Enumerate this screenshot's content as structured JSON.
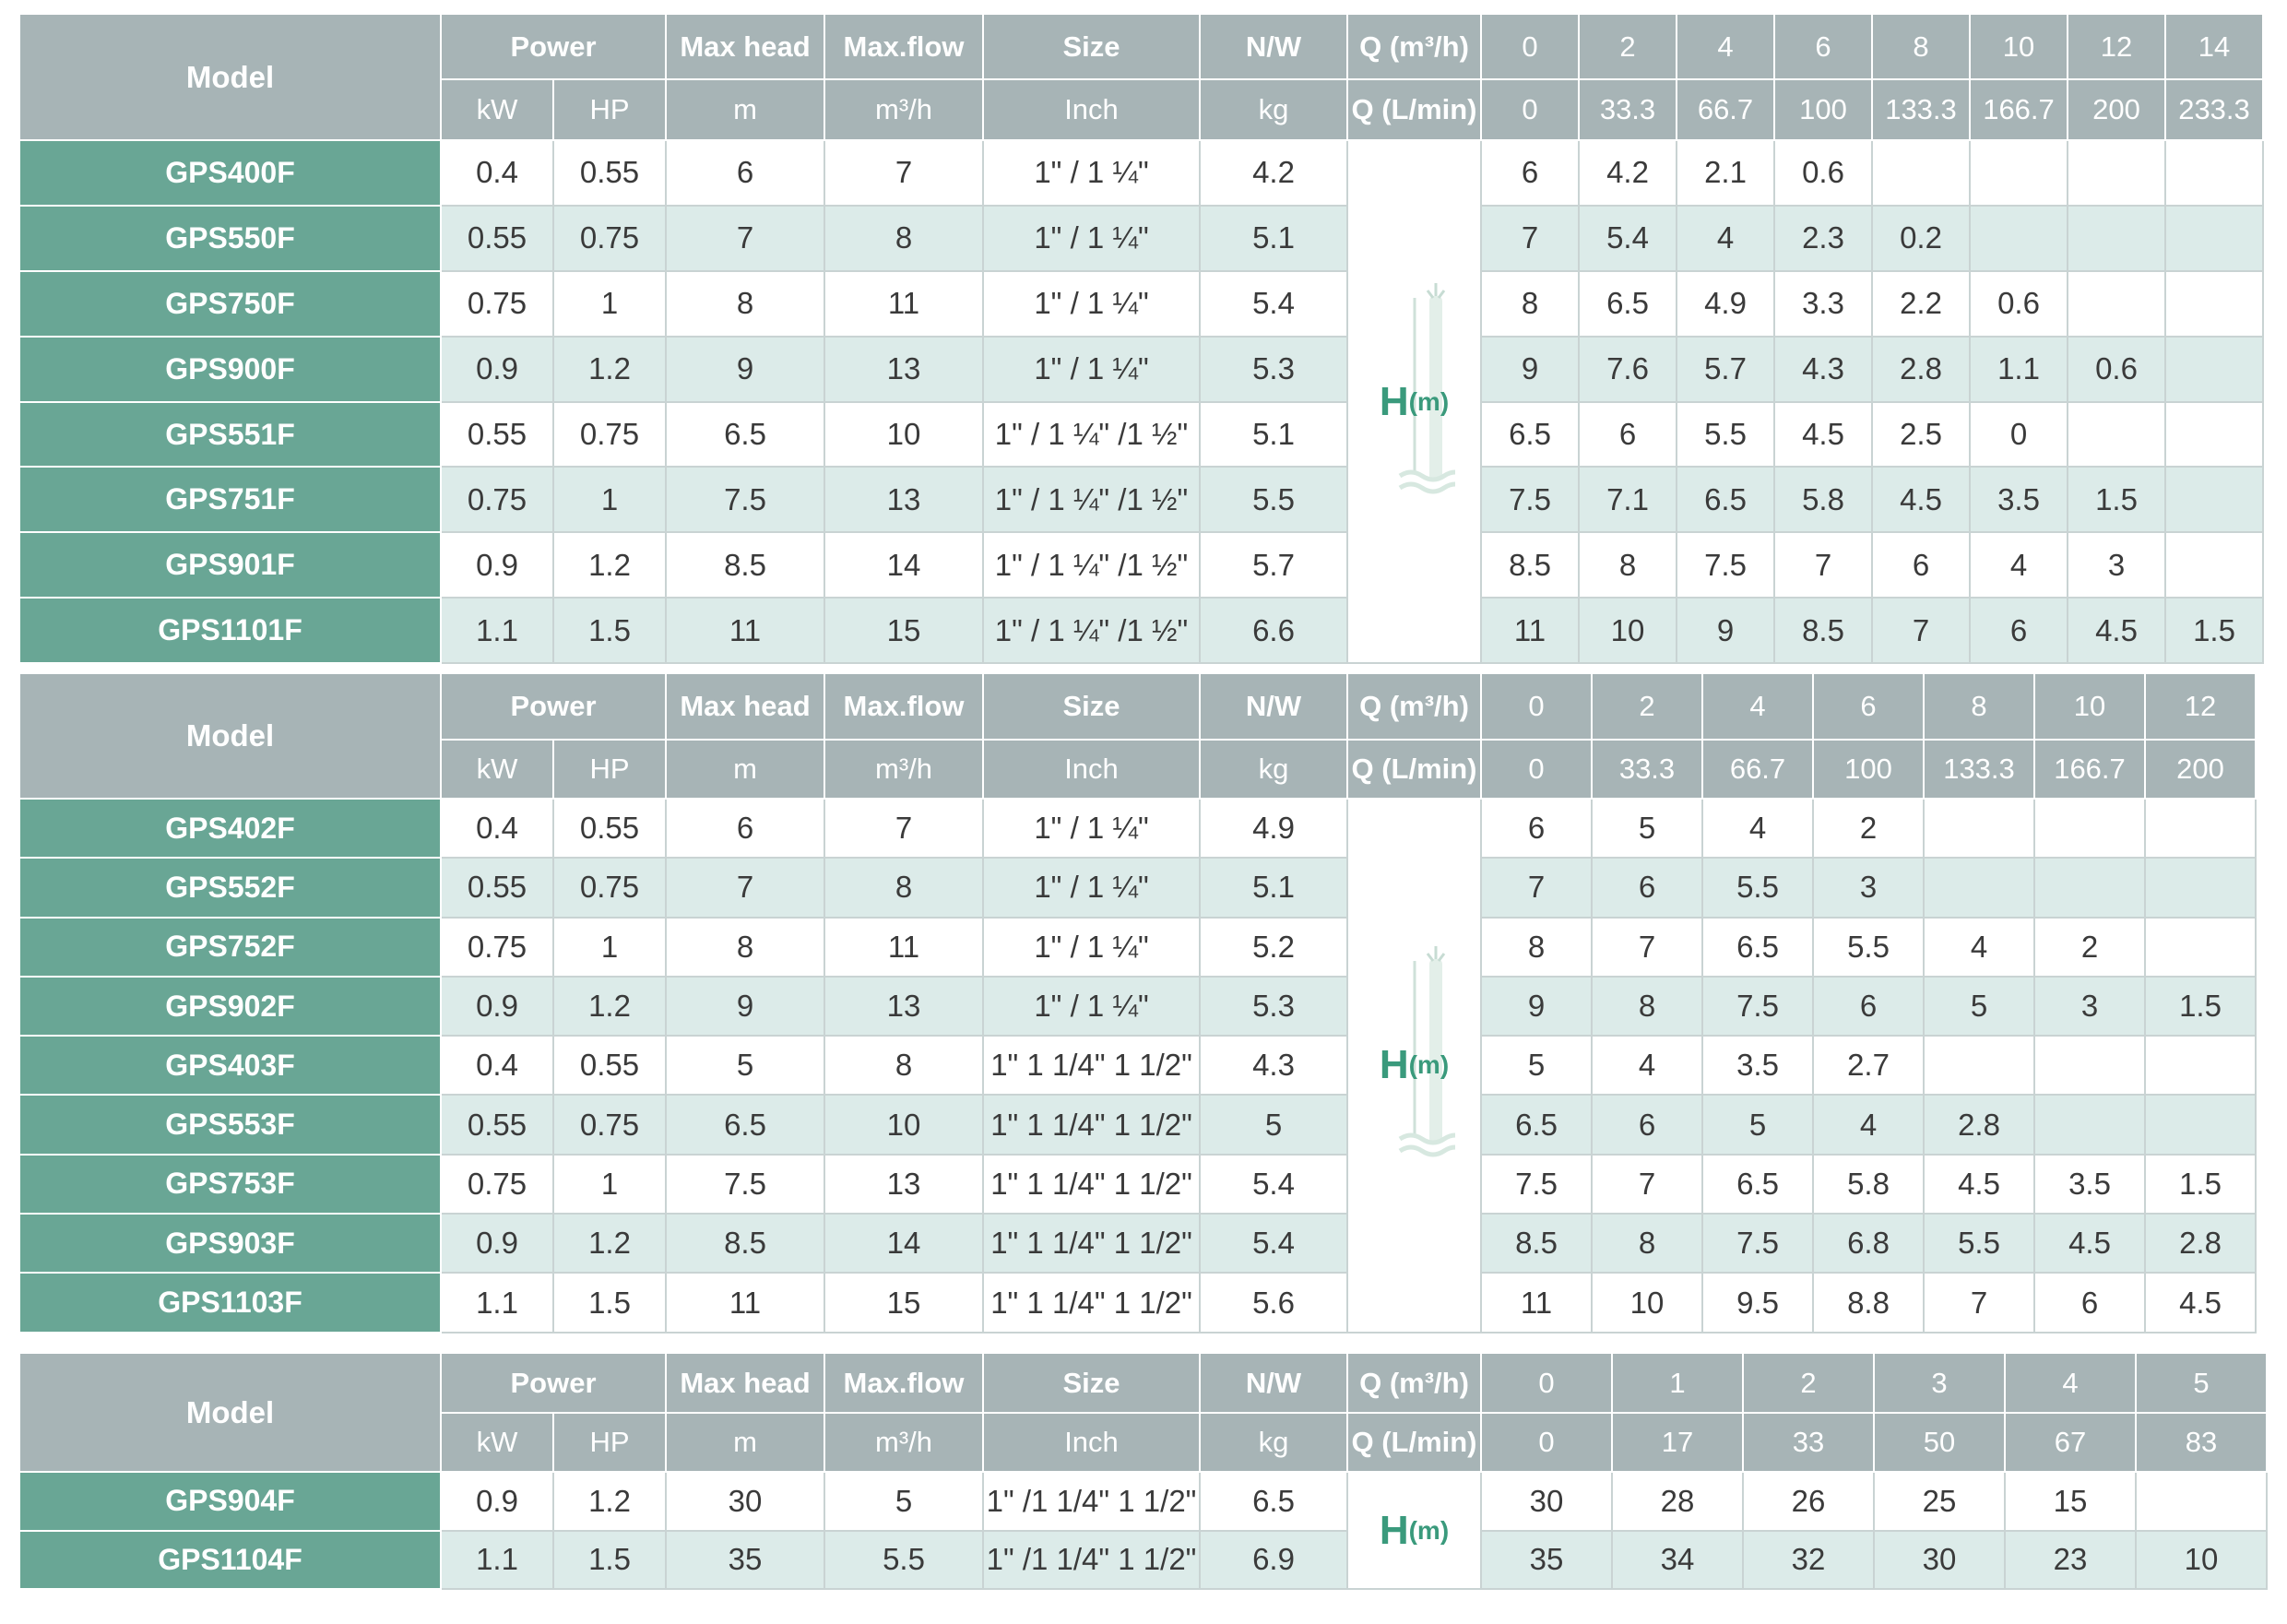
{
  "headers": {
    "model": "Model",
    "power": "Power",
    "max_head": "Max head",
    "max_flow": "Max.flow",
    "size": "Size",
    "nw": "N/W",
    "q_m3h": "Q (m³/h)",
    "kw": "kW",
    "hp": "HP",
    "m": "m",
    "m3h": "m³/h",
    "inch": "Inch",
    "kg": "kg",
    "q_lmin": "Q (L/min)"
  },
  "head_label": {
    "letter": "H",
    "unit": "(m)"
  },
  "tables": [
    {
      "q_m3h": [
        "0",
        "2",
        "4",
        "6",
        "8",
        "10",
        "12",
        "14"
      ],
      "q_lmin": [
        "0",
        "33.3",
        "66.7",
        "100",
        "133.3",
        "166.7",
        "200",
        "233.3"
      ],
      "rows": [
        {
          "model": "GPS400F",
          "kw": "0.4",
          "hp": "0.55",
          "head": "6",
          "flow": "7",
          "size": "1\" / 1 ¼\"",
          "nw": "4.2",
          "h": [
            "6",
            "4.2",
            "2.1",
            "0.6",
            "",
            "",
            "",
            ""
          ]
        },
        {
          "model": "GPS550F",
          "kw": "0.55",
          "hp": "0.75",
          "head": "7",
          "flow": "8",
          "size": "1\" / 1 ¼\"",
          "nw": "5.1",
          "h": [
            "7",
            "5.4",
            "4",
            "2.3",
            "0.2",
            "",
            "",
            ""
          ]
        },
        {
          "model": "GPS750F",
          "kw": "0.75",
          "hp": "1",
          "head": "8",
          "flow": "11",
          "size": "1\" / 1 ¼\"",
          "nw": "5.4",
          "h": [
            "8",
            "6.5",
            "4.9",
            "3.3",
            "2.2",
            "0.6",
            "",
            ""
          ]
        },
        {
          "model": "GPS900F",
          "kw": "0.9",
          "hp": "1.2",
          "head": "9",
          "flow": "13",
          "size": "1\" / 1 ¼\"",
          "nw": "5.3",
          "h": [
            "9",
            "7.6",
            "5.7",
            "4.3",
            "2.8",
            "1.1",
            "0.6",
            ""
          ]
        },
        {
          "model": "GPS551F",
          "kw": "0.55",
          "hp": "0.75",
          "head": "6.5",
          "flow": "10",
          "size": "1\" / 1 ¼\" /1 ½\"",
          "nw": "5.1",
          "h": [
            "6.5",
            "6",
            "5.5",
            "4.5",
            "2.5",
            "0",
            "",
            ""
          ]
        },
        {
          "model": "GPS751F",
          "kw": "0.75",
          "hp": "1",
          "head": "7.5",
          "flow": "13",
          "size": "1\" / 1 ¼\" /1 ½\"",
          "nw": "5.5",
          "h": [
            "7.5",
            "7.1",
            "6.5",
            "5.8",
            "4.5",
            "3.5",
            "1.5",
            ""
          ]
        },
        {
          "model": "GPS901F",
          "kw": "0.9",
          "hp": "1.2",
          "head": "8.5",
          "flow": "14",
          "size": "1\" / 1 ¼\" /1 ½\"",
          "nw": "5.7",
          "h": [
            "8.5",
            "8",
            "7.5",
            "7",
            "6",
            "4",
            "3",
            ""
          ]
        },
        {
          "model": "GPS1101F",
          "kw": "1.1",
          "hp": "1.5",
          "head": "11",
          "flow": "15",
          "size": "1\" / 1 ¼\" /1 ½\"",
          "nw": "6.6",
          "h": [
            "11",
            "10",
            "9",
            "8.5",
            "7",
            "6",
            "4.5",
            "1.5"
          ]
        }
      ]
    },
    {
      "q_m3h": [
        "0",
        "2",
        "4",
        "6",
        "8",
        "10",
        "12"
      ],
      "q_lmin": [
        "0",
        "33.3",
        "66.7",
        "100",
        "133.3",
        "166.7",
        "200"
      ],
      "rows": [
        {
          "model": "GPS402F",
          "kw": "0.4",
          "hp": "0.55",
          "head": "6",
          "flow": "7",
          "size": "1\" / 1 ¼\"",
          "nw": "4.9",
          "h": [
            "6",
            "5",
            "4",
            "2",
            "",
            "",
            ""
          ]
        },
        {
          "model": "GPS552F",
          "kw": "0.55",
          "hp": "0.75",
          "head": "7",
          "flow": "8",
          "size": "1\" / 1 ¼\"",
          "nw": "5.1",
          "h": [
            "7",
            "6",
            "5.5",
            "3",
            "",
            "",
            ""
          ]
        },
        {
          "model": "GPS752F",
          "kw": "0.75",
          "hp": "1",
          "head": "8",
          "flow": "11",
          "size": "1\" / 1 ¼\"",
          "nw": "5.2",
          "h": [
            "8",
            "7",
            "6.5",
            "5.5",
            "4",
            "2",
            ""
          ]
        },
        {
          "model": "GPS902F",
          "kw": "0.9",
          "hp": "1.2",
          "head": "9",
          "flow": "13",
          "size": "1\" / 1 ¼\"",
          "nw": "5.3",
          "h": [
            "9",
            "8",
            "7.5",
            "6",
            "5",
            "3",
            "1.5"
          ]
        },
        {
          "model": "GPS403F",
          "kw": "0.4",
          "hp": "0.55",
          "head": "5",
          "flow": "8",
          "size": "1\" 1 1/4\" 1 1/2\"",
          "nw": "4.3",
          "h": [
            "5",
            "4",
            "3.5",
            "2.7",
            "",
            "",
            ""
          ]
        },
        {
          "model": "GPS553F",
          "kw": "0.55",
          "hp": "0.75",
          "head": "6.5",
          "flow": "10",
          "size": "1\" 1 1/4\" 1 1/2\"",
          "nw": "5",
          "h": [
            "6.5",
            "6",
            "5",
            "4",
            "2.8",
            "",
            ""
          ]
        },
        {
          "model": "GPS753F",
          "kw": "0.75",
          "hp": "1",
          "head": "7.5",
          "flow": "13",
          "size": "1\" 1 1/4\" 1 1/2\"",
          "nw": "5.4",
          "h": [
            "7.5",
            "7",
            "6.5",
            "5.8",
            "4.5",
            "3.5",
            "1.5"
          ]
        },
        {
          "model": "GPS903F",
          "kw": "0.9",
          "hp": "1.2",
          "head": "8.5",
          "flow": "14",
          "size": "1\" 1 1/4\" 1 1/2\"",
          "nw": "5.4",
          "h": [
            "8.5",
            "8",
            "7.5",
            "6.8",
            "5.5",
            "4.5",
            "2.8"
          ]
        },
        {
          "model": "GPS1103F",
          "kw": "1.1",
          "hp": "1.5",
          "head": "11",
          "flow": "15",
          "size": "1\" 1 1/4\" 1 1/2\"",
          "nw": "5.6",
          "h": [
            "11",
            "10",
            "9.5",
            "8.8",
            "7",
            "6",
            "4.5"
          ]
        }
      ]
    },
    {
      "q_m3h": [
        "0",
        "1",
        "2",
        "3",
        "4",
        "5"
      ],
      "q_lmin": [
        "0",
        "17",
        "33",
        "50",
        "67",
        "83"
      ],
      "rows": [
        {
          "model": "GPS904F",
          "kw": "0.9",
          "hp": "1.2",
          "head": "30",
          "flow": "5",
          "size": "1\" /1 1/4\" 1 1/2\"",
          "nw": "6.5",
          "h": [
            "30",
            "28",
            "26",
            "25",
            "15",
            ""
          ]
        },
        {
          "model": "GPS1104F",
          "kw": "1.1",
          "hp": "1.5",
          "head": "35",
          "flow": "5.5",
          "size": "1\" /1 1/4\" 1 1/2\"",
          "nw": "6.9",
          "h": [
            "35",
            "34",
            "32",
            "30",
            "23",
            "10"
          ]
        }
      ]
    }
  ]
}
